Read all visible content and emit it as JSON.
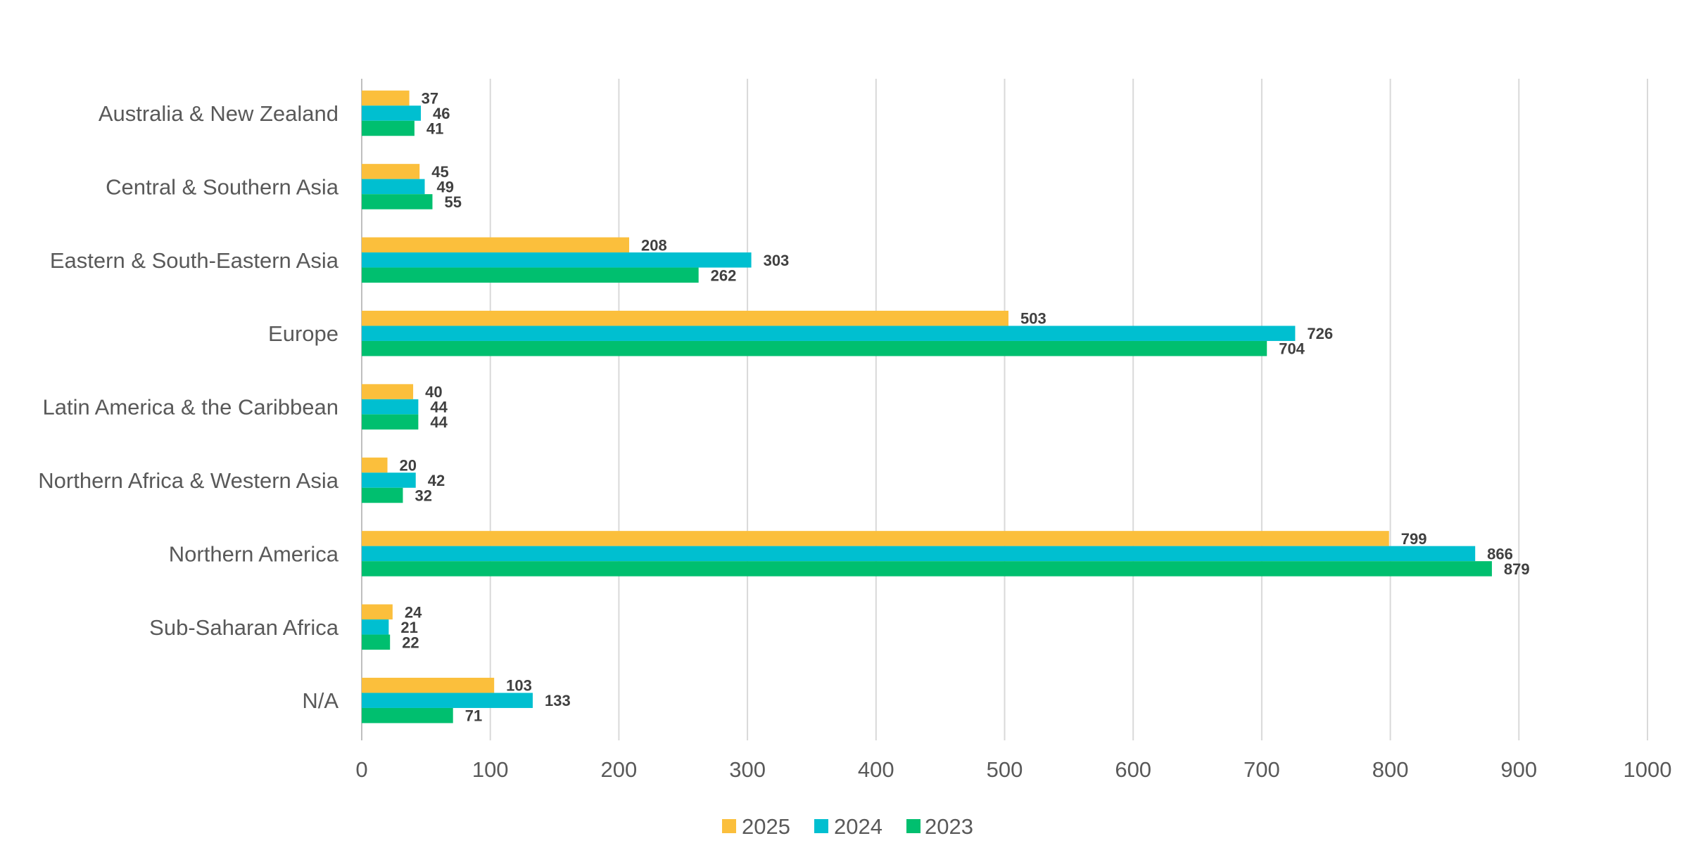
{
  "chart_data": {
    "type": "bar",
    "orientation": "horizontal",
    "title": "",
    "xlabel": "",
    "ylabel": "",
    "xlim": [
      0,
      1000
    ],
    "x_ticks": [
      0,
      100,
      200,
      300,
      400,
      500,
      600,
      700,
      800,
      900,
      1000
    ],
    "grid": true,
    "legend_position": "bottom",
    "categories": [
      "Australia & New Zealand",
      "Central & Southern Asia",
      "Eastern & South-Eastern Asia",
      "Europe",
      "Latin America & the Caribbean",
      "Northern Africa & Western Asia",
      "Northern America",
      "Sub-Saharan Africa",
      "N/A"
    ],
    "series": [
      {
        "name": "2025",
        "color": "#FBBF3C",
        "values": [
          37,
          45,
          208,
          503,
          40,
          20,
          799,
          24,
          103
        ]
      },
      {
        "name": "2024",
        "color": "#00BFD0",
        "values": [
          46,
          49,
          303,
          726,
          44,
          42,
          866,
          21,
          133
        ]
      },
      {
        "name": "2023",
        "color": "#00BF6F",
        "values": [
          41,
          55,
          262,
          704,
          44,
          32,
          879,
          22,
          71
        ]
      }
    ]
  }
}
